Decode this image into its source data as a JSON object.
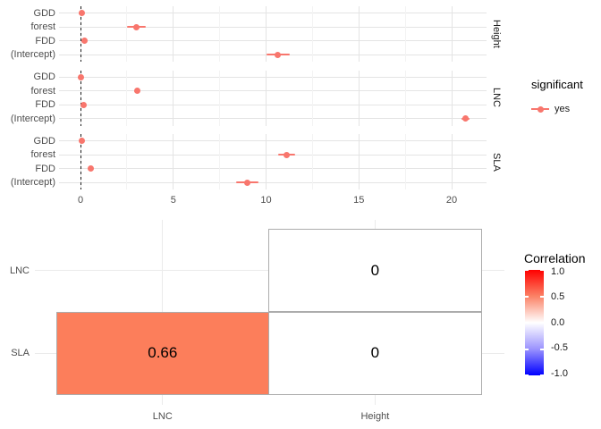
{
  "colors": {
    "point": "#F8766D",
    "grid_major": "#E4E4E4",
    "grid_minor": "#F3F3F3",
    "heatmap_grid": "#EBEBEB",
    "tile_border": "#ACACAC",
    "axis_text": "#4D4D4D"
  },
  "chart_data": [
    {
      "type": "scatter",
      "subtype": "faceted-coefficient-pointrange",
      "facets": [
        "Height",
        "LNC",
        "SLA"
      ],
      "categories": [
        "GDD",
        "forest",
        "FDD",
        "(Intercept)"
      ],
      "series": [
        {
          "facet": "Height",
          "points": [
            {
              "term": "GDD",
              "estimate": 0.05,
              "low": -0.1,
              "high": 0.2
            },
            {
              "term": "forest",
              "estimate": 3.0,
              "low": 2.5,
              "high": 3.5
            },
            {
              "term": "FDD",
              "estimate": 0.2,
              "low": 0.07,
              "high": 0.33
            },
            {
              "term": "(Intercept)",
              "estimate": 10.65,
              "low": 10.0,
              "high": 11.3
            }
          ]
        },
        {
          "facet": "LNC",
          "points": [
            {
              "term": "GDD",
              "estimate": 0.03,
              "low": -0.05,
              "high": 0.11
            },
            {
              "term": "forest",
              "estimate": 3.05,
              "low": 2.9,
              "high": 3.2
            },
            {
              "term": "FDD",
              "estimate": 0.18,
              "low": 0.08,
              "high": 0.28
            },
            {
              "term": "(Intercept)",
              "estimate": 20.75,
              "low": 20.55,
              "high": 20.95
            }
          ]
        },
        {
          "facet": "SLA",
          "points": [
            {
              "term": "GDD",
              "estimate": 0.05,
              "low": -0.07,
              "high": 0.17
            },
            {
              "term": "forest",
              "estimate": 11.1,
              "low": 10.65,
              "high": 11.55
            },
            {
              "term": "FDD",
              "estimate": 0.55,
              "low": 0.42,
              "high": 0.68
            },
            {
              "term": "(Intercept)",
              "estimate": 9.0,
              "low": 8.4,
              "high": 9.6
            }
          ]
        }
      ],
      "x_ticks": [
        0,
        5,
        10,
        15,
        20
      ],
      "x_minor_ticks": [
        2.5,
        7.5,
        12.5,
        17.5
      ],
      "xlim": [
        -1.16,
        21.9
      ],
      "vline": 0,
      "point_color": "#F8766D",
      "legend": {
        "title": "significant",
        "items": [
          {
            "label": "yes",
            "color": "#F8766D"
          }
        ]
      }
    },
    {
      "type": "heatmap",
      "x_categories": [
        "LNC",
        "Height"
      ],
      "y_categories": [
        "LNC",
        "SLA"
      ],
      "cells": [
        {
          "row": "LNC",
          "col": "Height",
          "value": 0,
          "label": "0",
          "fill": "#FFFFFF"
        },
        {
          "row": "SLA",
          "col": "LNC",
          "value": 0.66,
          "label": "0.66",
          "fill": "#FC7E5B"
        },
        {
          "row": "SLA",
          "col": "Height",
          "value": 0,
          "label": "0",
          "fill": "#FFFFFF"
        }
      ],
      "legend": {
        "title": "Correlation",
        "ticks": [
          "1.0",
          "0.5",
          "0.0",
          "-0.5",
          "-1.0"
        ],
        "limits": [
          -1,
          1
        ],
        "high_color": "#FF0000",
        "mid_color": "#FFFFFF",
        "low_color": "#0000FF"
      }
    }
  ]
}
